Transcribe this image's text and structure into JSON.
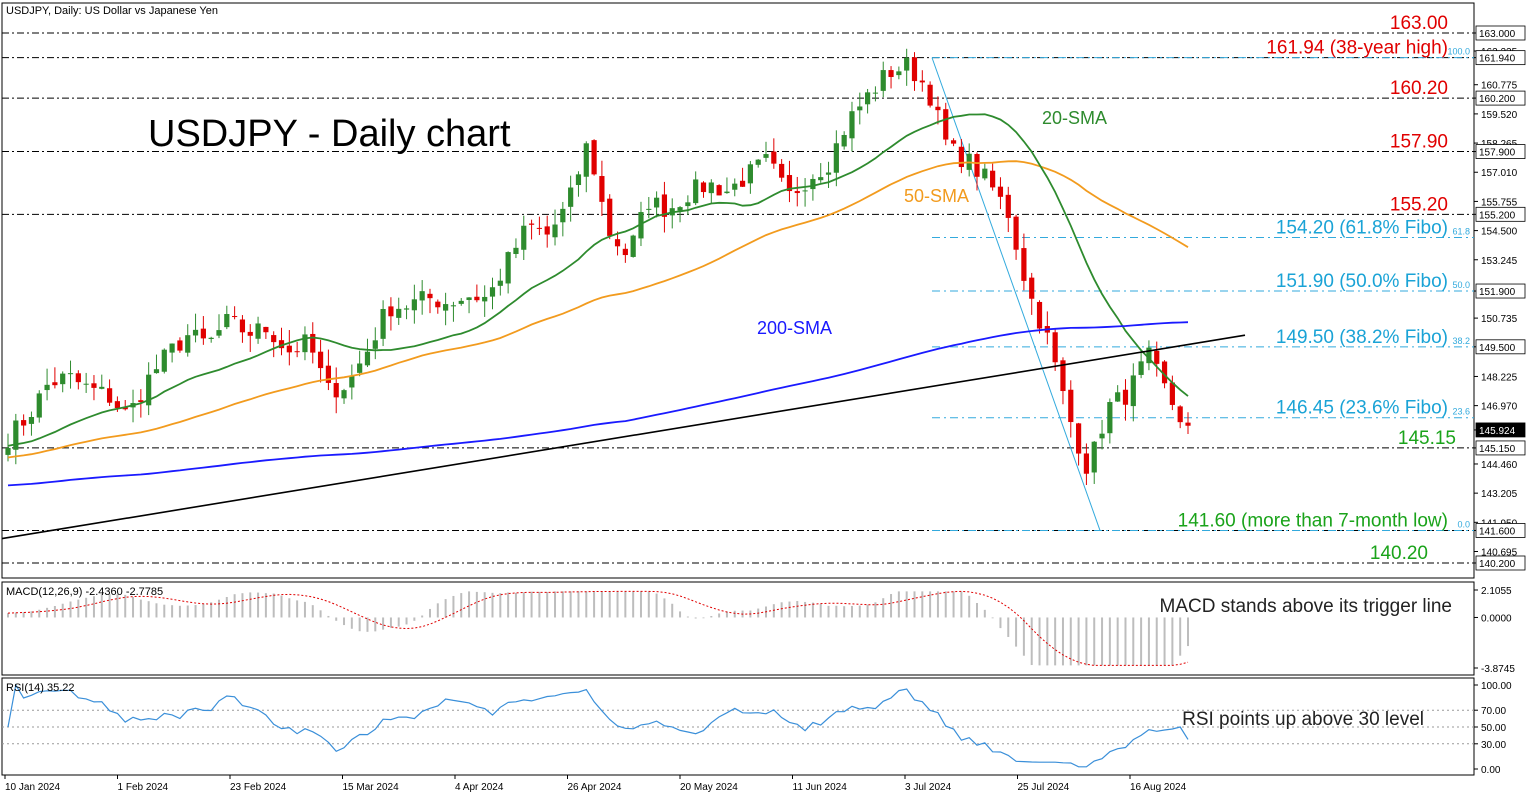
{
  "header": {
    "instrument": "USDJPY, Daily:  US Dollar vs Japanese Yen",
    "big_title": "USDJPY - Daily chart"
  },
  "colors": {
    "up_candle": "#2e8b2e",
    "down_candle": "#e00000",
    "sma20": "#2e8b2e",
    "sma50": "#f29b1e",
    "sma200": "#1a1aff",
    "trendline": "#000000",
    "fibo_line": "#33aadd",
    "resistance_label": "#e00000",
    "fibo_label": "#1aa3d6",
    "support_label": "#1aa31a",
    "rsi_line": "#3a8fd9",
    "macd_signal": "#e00000",
    "macd_hist": "#bdbdbd"
  },
  "chart_data": [
    {
      "type": "candlestick",
      "name": "price",
      "ylim": [
        140.2,
        163.0
      ],
      "x_axis_labels": [
        "10 Jan 2024",
        "1 Feb 2024",
        "23 Feb 2024",
        "15 Mar 2024",
        "4 Apr 2024",
        "26 Apr 2024",
        "20 May 2024",
        "11 Jun 2024",
        "3 Jul 2024",
        "25 Jul 2024",
        "16 Aug 2024"
      ],
      "y_axis_ticks": [
        "163.000",
        "162.225",
        "161.940",
        "160.775",
        "160.200",
        "159.520",
        "158.265",
        "157.900",
        "157.010",
        "155.755",
        "155.200",
        "154.500",
        "153.245",
        "151.900",
        "150.735",
        "149.500",
        "148.225",
        "146.970",
        "145.924",
        "145.150",
        "144.460",
        "143.205",
        "141.950",
        "141.600",
        "140.695",
        "140.200"
      ],
      "horizontal_levels": [
        {
          "value": 163.0,
          "label": "163.00",
          "kind": "resistance"
        },
        {
          "value": 161.94,
          "label": "161.94 (38-year high)",
          "kind": "resistance"
        },
        {
          "value": 160.2,
          "label": "160.20",
          "kind": "resistance"
        },
        {
          "value": 157.9,
          "label": "157.90",
          "kind": "resistance"
        },
        {
          "value": 155.2,
          "label": "155.20",
          "kind": "resistance"
        },
        {
          "value": 145.15,
          "label": "145.15",
          "kind": "support"
        },
        {
          "value": 141.6,
          "label": "141.60 (more than 7-month low)",
          "kind": "support"
        },
        {
          "value": 140.2,
          "label": "140.20",
          "kind": "support"
        }
      ],
      "fibo_levels": [
        {
          "value": 161.94,
          "ratio": "100.0"
        },
        {
          "value": 154.2,
          "ratio": "61.8",
          "label": "154.20 (61.8% Fibo)"
        },
        {
          "value": 151.9,
          "ratio": "50.0",
          "label": "151.90 (50.0% Fibo)"
        },
        {
          "value": 149.5,
          "ratio": "38.2",
          "label": "149.50 (38.2% Fibo)"
        },
        {
          "value": 146.45,
          "ratio": "23.6",
          "label": "146.45 (23.6% Fibo)"
        },
        {
          "value": 141.6,
          "ratio": "0.0"
        }
      ],
      "current_price": "145.924",
      "series": [
        {
          "name": "20-SMA",
          "label": "20-SMA"
        },
        {
          "name": "50-SMA",
          "label": "50-SMA"
        },
        {
          "name": "200-SMA",
          "label": "200-SMA"
        }
      ],
      "close_anchors": [
        145.6,
        146.5,
        147.9,
        148.2,
        147.7,
        147.4,
        146.5,
        148.1,
        149.2,
        150.0,
        149.6,
        150.6,
        150.1,
        150.3,
        149.3,
        149.7,
        147.6,
        147.9,
        149.4,
        151.2,
        151.3,
        151.6,
        151.4,
        151.7,
        151.6,
        153.2,
        154.7,
        154.3,
        155.6,
        158.3,
        154.5,
        153.4,
        155.8,
        155.4,
        156.1,
        156.5,
        156.2,
        156.9,
        157.5,
        155.9,
        156.8,
        157.4,
        159.2,
        160.3,
        161.3,
        161.6,
        160.6,
        158.0,
        157.5,
        156.6,
        155.3,
        151.9,
        149.8,
        146.6,
        144.2,
        146.9,
        147.5,
        149.1,
        147.4,
        145.9
      ]
    },
    {
      "type": "macd",
      "name": "MACD(12,26,9) -2.4360 -2.7785",
      "params": "12,26,9",
      "value": -2.436,
      "signal": -2.7785,
      "ylim": [
        -3.8745,
        2.1055
      ],
      "y_axis_ticks": [
        "2.1055",
        "0.0000",
        "-3.8745"
      ],
      "annotation": "MACD stands above its trigger line"
    },
    {
      "type": "line",
      "name": "RSI(14) 35.22",
      "value": 35.22,
      "ylim": [
        0,
        100
      ],
      "y_axis_ticks": [
        "100.00",
        "70.00",
        "50.00",
        "30.00",
        "0.00"
      ],
      "levels": [
        70,
        50,
        30
      ],
      "annotation": "RSI points up above 30 level"
    }
  ]
}
